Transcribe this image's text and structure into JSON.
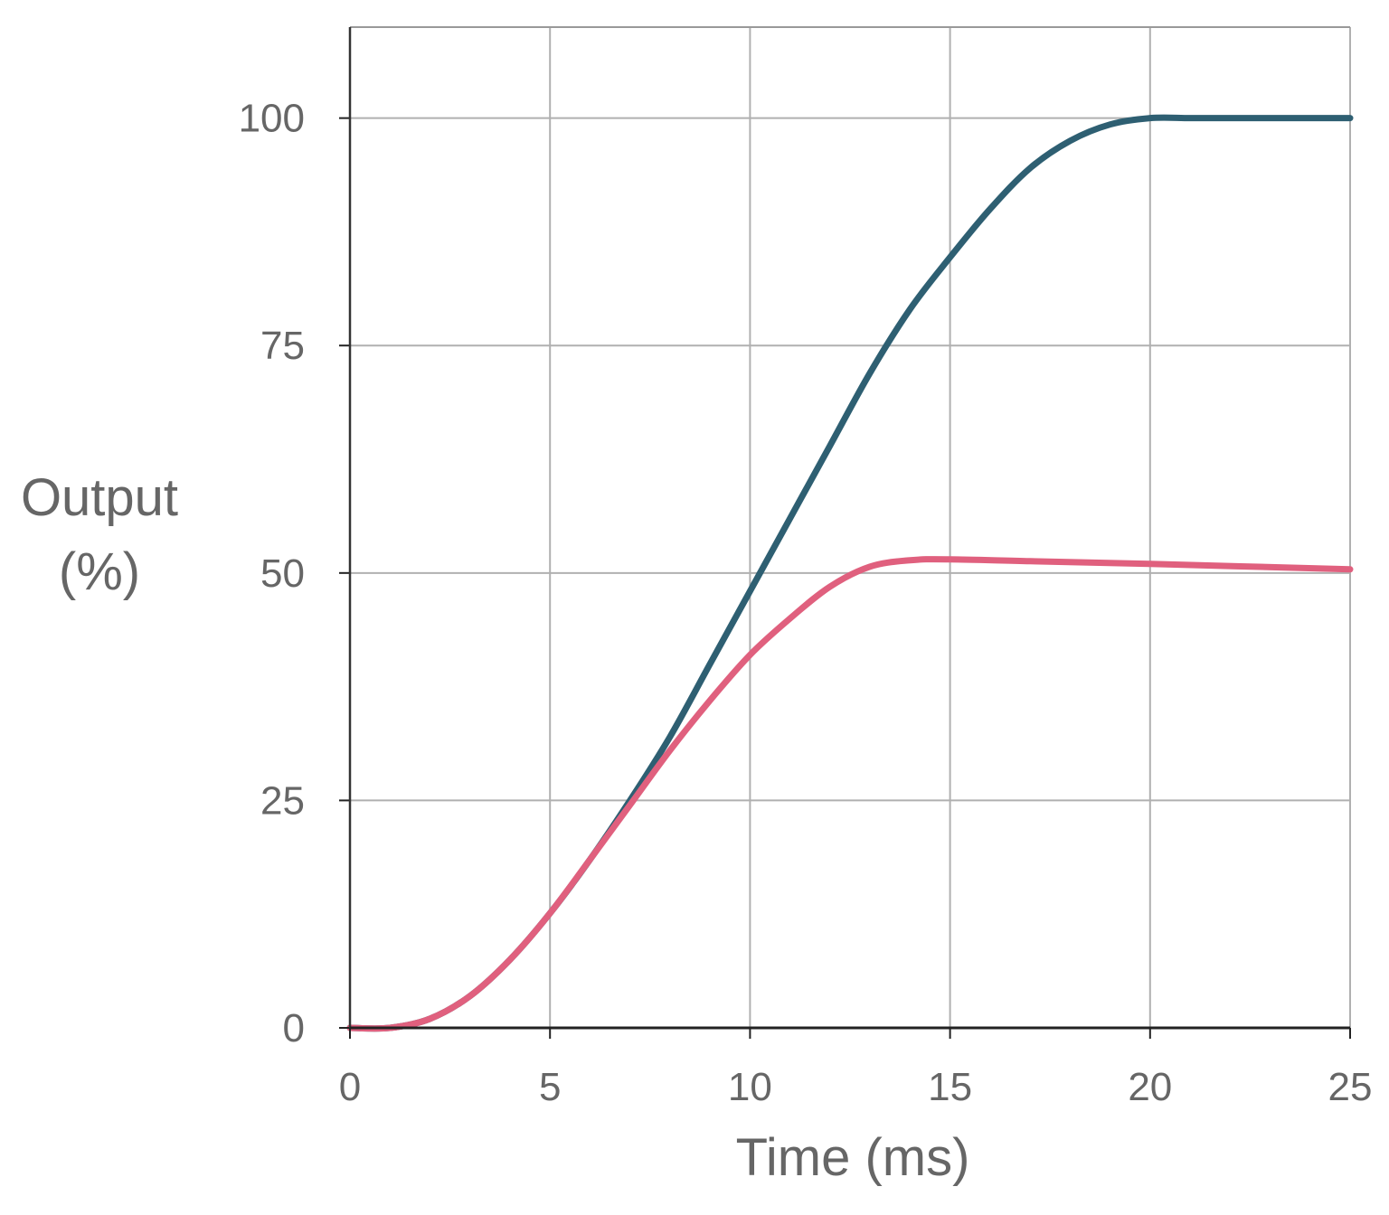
{
  "chart_data": {
    "type": "line",
    "title": "",
    "xlabel": "Time (ms)",
    "ylabel_lines": [
      "Output",
      "(%)"
    ],
    "xlim": [
      0,
      25
    ],
    "ylim": [
      0,
      110
    ],
    "xticks": [
      0,
      5,
      10,
      15,
      20,
      25
    ],
    "yticks": [
      0,
      25,
      50,
      75,
      100
    ],
    "grid": true,
    "legend": "none",
    "series": [
      {
        "color": "#2e5f72",
        "x": [
          0,
          1,
          2,
          3,
          4,
          5,
          6,
          7,
          8,
          9,
          10,
          11,
          12,
          13,
          14,
          15,
          16,
          17,
          18,
          19,
          20,
          21,
          22,
          23,
          24,
          25
        ],
        "y": [
          0,
          0,
          1,
          3.5,
          7.5,
          12.6,
          18.5,
          25,
          32,
          40,
          48,
          56,
          64,
          72,
          79,
          84.7,
          90,
          94.5,
          97.5,
          99.3,
          100,
          100,
          100,
          100,
          100,
          100
        ]
      },
      {
        "color": "#e0607e",
        "x": [
          0,
          1,
          2,
          3,
          4,
          5,
          6,
          7,
          8,
          9,
          10,
          11,
          12,
          13,
          14,
          15,
          17,
          20,
          25
        ],
        "y": [
          0,
          0,
          1,
          3.5,
          7.5,
          12.6,
          18.5,
          24.5,
          30.5,
          36,
          41,
          45,
          48.5,
          50.7,
          51.4,
          51.5,
          51.3,
          51,
          50.4
        ]
      }
    ]
  }
}
